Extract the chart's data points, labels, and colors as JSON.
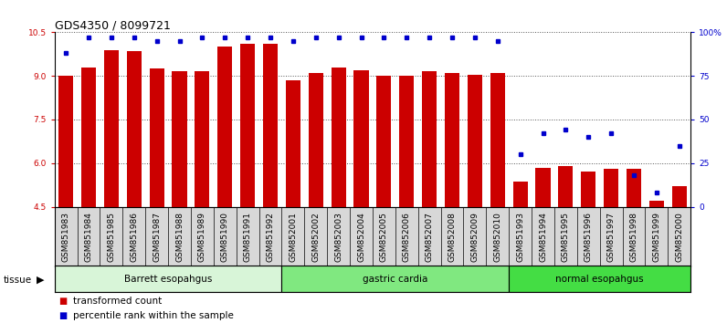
{
  "title": "GDS4350 / 8099721",
  "samples": [
    "GSM851983",
    "GSM851984",
    "GSM851985",
    "GSM851986",
    "GSM851987",
    "GSM851988",
    "GSM851989",
    "GSM851990",
    "GSM851991",
    "GSM851992",
    "GSM852001",
    "GSM852002",
    "GSM852003",
    "GSM852004",
    "GSM852005",
    "GSM852006",
    "GSM852007",
    "GSM852008",
    "GSM852009",
    "GSM852010",
    "GSM851993",
    "GSM851994",
    "GSM851995",
    "GSM851996",
    "GSM851997",
    "GSM851998",
    "GSM851999",
    "GSM852000"
  ],
  "bar_values": [
    9.0,
    9.3,
    9.9,
    9.85,
    9.25,
    9.15,
    9.15,
    10.0,
    10.1,
    10.1,
    8.85,
    9.1,
    9.3,
    9.2,
    9.0,
    9.0,
    9.15,
    9.1,
    9.05,
    9.1,
    5.35,
    5.85,
    5.9,
    5.7,
    5.8,
    5.8,
    4.7,
    5.2
  ],
  "percentile_values": [
    88,
    97,
    97,
    97,
    95,
    95,
    97,
    97,
    97,
    97,
    95,
    97,
    97,
    97,
    97,
    97,
    97,
    97,
    97,
    95,
    30,
    42,
    44,
    40,
    42,
    18,
    8,
    35
  ],
  "groups": [
    {
      "label": "Barrett esopahgus",
      "start": 0,
      "end": 9,
      "color": "#d8f5d8"
    },
    {
      "label": "gastric cardia",
      "start": 10,
      "end": 19,
      "color": "#80e880"
    },
    {
      "label": "normal esopahgus",
      "start": 20,
      "end": 27,
      "color": "#44dd44"
    }
  ],
  "ylim_left": [
    4.5,
    10.5
  ],
  "ylim_right": [
    0,
    100
  ],
  "yticks_left": [
    4.5,
    6.0,
    7.5,
    9.0,
    10.5
  ],
  "yticks_right": [
    0,
    25,
    50,
    75,
    100
  ],
  "ytick_labels_right": [
    "0",
    "25",
    "50",
    "75",
    "100%"
  ],
  "bar_color": "#cc0000",
  "dot_color": "#0000cc",
  "bar_width": 0.65,
  "background_color": "#ffffff",
  "title_fontsize": 9,
  "tick_fontsize": 6.5,
  "label_fontsize": 7.5,
  "grid_color": "#555555",
  "spine_color": "#000000"
}
